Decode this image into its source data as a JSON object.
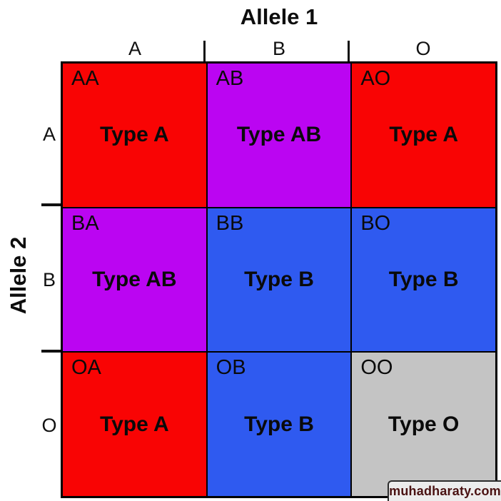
{
  "title": "Allele 1",
  "side_title": "Allele 2",
  "column_headers": [
    "A",
    "B",
    "O"
  ],
  "row_headers": [
    "A",
    "B",
    "O"
  ],
  "colors": {
    "type_a_red": "#F90404",
    "type_ab_purple": "#BB05F2",
    "type_b_blue": "#2F5AF0",
    "type_o_gray": "#C4C4C4",
    "grid_border": "#000000",
    "watermark_text": "#4A1212"
  },
  "cells": [
    {
      "genotype": "AA",
      "phenotype": "Type A",
      "color": "#F90404"
    },
    {
      "genotype": "AB",
      "phenotype": "Type AB",
      "color": "#BB05F2"
    },
    {
      "genotype": "AO",
      "phenotype": "Type A",
      "color": "#F90404"
    },
    {
      "genotype": "BA",
      "phenotype": "Type AB",
      "color": "#BB05F2"
    },
    {
      "genotype": "BB",
      "phenotype": "Type B",
      "color": "#2F5AF0"
    },
    {
      "genotype": "BO",
      "phenotype": "Type B",
      "color": "#2F5AF0"
    },
    {
      "genotype": "OA",
      "phenotype": "Type A",
      "color": "#F90404"
    },
    {
      "genotype": "OB",
      "phenotype": "Type B",
      "color": "#2F5AF0"
    },
    {
      "genotype": "OO",
      "phenotype": "Type O",
      "color": "#C4C4C4"
    }
  ],
  "watermark": "muhadharaty.com"
}
